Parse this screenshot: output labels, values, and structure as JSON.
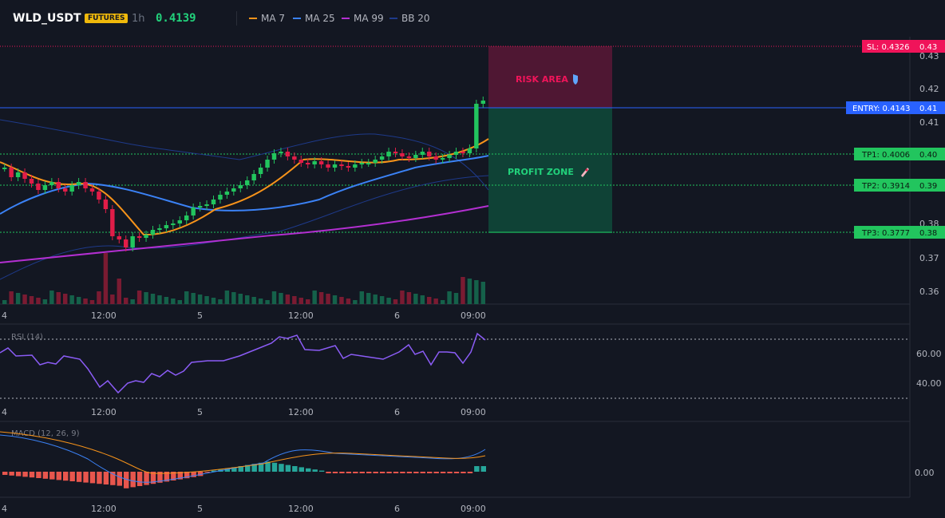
{
  "header": {
    "symbol": "WLD_USDT",
    "badge": "FUTURES",
    "interval": "1h",
    "last_price": "0.4139",
    "indicators": [
      {
        "label": "MA 7",
        "color": "#f7931a"
      },
      {
        "label": "MA 25",
        "color": "#3b82f6"
      },
      {
        "label": "MA 99",
        "color": "#b32fd1"
      },
      {
        "label": "BB 20",
        "color": "#1e3a8a"
      }
    ]
  },
  "price_axis": {
    "ticks": [
      "0.43",
      "0.42",
      "0.41",
      "0.38",
      "0.37",
      "0.36"
    ]
  },
  "time_axis": {
    "ticks": [
      "4",
      "12:00",
      "5",
      "12:00",
      "6",
      "09:00"
    ]
  },
  "zones": {
    "risk_label": "RISK AREA",
    "risk_icon": "shield-icon",
    "profit_label": "PROFIT ZONE",
    "profit_icon": "rocket-icon"
  },
  "levels": {
    "sl": {
      "label": "SL: 0.4326",
      "value": "0.43",
      "color": "#f0145a"
    },
    "entry": {
      "label": "ENTRY: 0.4143",
      "value": "0.41",
      "color": "#2962ff"
    },
    "tp1": {
      "label": "TP1: 0.4006",
      "value": "0.40",
      "color": "#22c55e"
    },
    "tp2": {
      "label": "TP2: 0.3914",
      "value": "0.39",
      "color": "#22c55e"
    },
    "tp3": {
      "label": "TP3: 0.3777",
      "value": "0.38",
      "color": "#22c55e"
    }
  },
  "rsi": {
    "title": "RSI (14)",
    "ticks": [
      "60.00",
      "40.00"
    ],
    "color": "#8b5cf6"
  },
  "macd": {
    "title": "MACD (12, 26, 9)",
    "ticks": [
      "0.00"
    ]
  },
  "colors": {
    "up": "#22c55e",
    "down": "#e11d48",
    "bg": "#131722",
    "grid": "#2a2e39"
  }
}
